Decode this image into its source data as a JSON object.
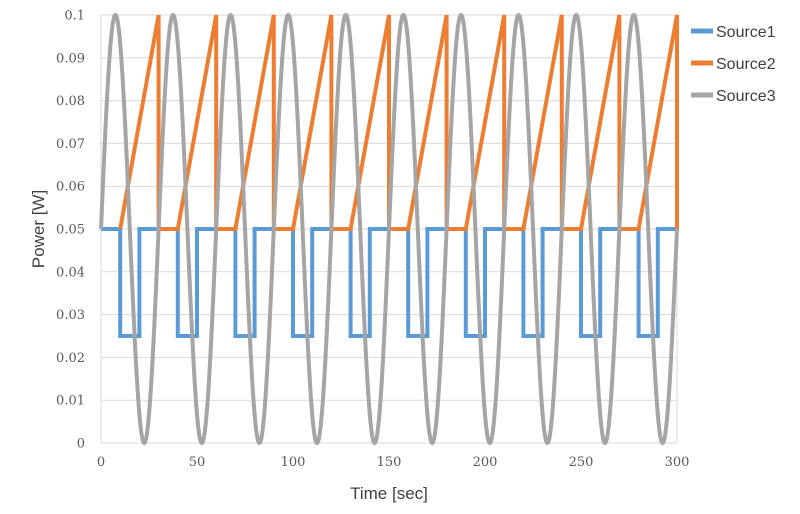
{
  "chart_data": {
    "type": "line",
    "title": "",
    "xlabel": "Time [sec]",
    "ylabel": "Power [W]",
    "xlim": [
      0,
      300
    ],
    "ylim": [
      0,
      0.1
    ],
    "x_ticks": [
      "0",
      "50",
      "100",
      "150",
      "200",
      "250",
      "300"
    ],
    "y_ticks": [
      "0",
      "0.01",
      "0.02",
      "0.03",
      "0.04",
      "0.05",
      "0.06",
      "0.07",
      "0.08",
      "0.09",
      "0.1"
    ],
    "grid": "horizontal",
    "legend_position": "right",
    "series": [
      {
        "name": "Source1",
        "color": "#5B9BD5",
        "points": [
          [
            0,
            0.05
          ],
          [
            10,
            0.05
          ],
          [
            10,
            0.025
          ],
          [
            20,
            0.025
          ],
          [
            20,
            0.05
          ],
          [
            40,
            0.05
          ],
          [
            40,
            0.025
          ],
          [
            50,
            0.025
          ],
          [
            50,
            0.05
          ],
          [
            70,
            0.05
          ],
          [
            70,
            0.025
          ],
          [
            80,
            0.025
          ],
          [
            80,
            0.05
          ],
          [
            100,
            0.05
          ],
          [
            100,
            0.025
          ],
          [
            110,
            0.025
          ],
          [
            110,
            0.05
          ],
          [
            130,
            0.05
          ],
          [
            130,
            0.025
          ],
          [
            140,
            0.025
          ],
          [
            140,
            0.05
          ],
          [
            160,
            0.05
          ],
          [
            160,
            0.025
          ],
          [
            170,
            0.025
          ],
          [
            170,
            0.05
          ],
          [
            190,
            0.05
          ],
          [
            190,
            0.025
          ],
          [
            200,
            0.025
          ],
          [
            200,
            0.05
          ],
          [
            220,
            0.05
          ],
          [
            220,
            0.025
          ],
          [
            230,
            0.025
          ],
          [
            230,
            0.05
          ],
          [
            250,
            0.05
          ],
          [
            250,
            0.025
          ],
          [
            260,
            0.025
          ],
          [
            260,
            0.05
          ],
          [
            280,
            0.05
          ],
          [
            280,
            0.025
          ],
          [
            290,
            0.025
          ],
          [
            290,
            0.05
          ],
          [
            300,
            0.05
          ]
        ]
      },
      {
        "name": "Source2",
        "color": "#ED7D31",
        "points": [
          [
            10,
            0.05
          ],
          [
            30,
            0.1
          ],
          [
            30,
            0.05
          ],
          [
            40,
            0.05
          ],
          [
            60,
            0.1
          ],
          [
            60,
            0.05
          ],
          [
            70,
            0.05
          ],
          [
            90,
            0.1
          ],
          [
            90,
            0.05
          ],
          [
            100,
            0.05
          ],
          [
            120,
            0.1
          ],
          [
            120,
            0.05
          ],
          [
            130,
            0.05
          ],
          [
            150,
            0.1
          ],
          [
            150,
            0.05
          ],
          [
            160,
            0.05
          ],
          [
            180,
            0.1
          ],
          [
            180,
            0.05
          ],
          [
            190,
            0.05
          ],
          [
            210,
            0.1
          ],
          [
            210,
            0.05
          ],
          [
            220,
            0.05
          ],
          [
            240,
            0.1
          ],
          [
            240,
            0.05
          ],
          [
            250,
            0.05
          ],
          [
            270,
            0.1
          ],
          [
            270,
            0.05
          ],
          [
            280,
            0.05
          ],
          [
            300,
            0.1
          ],
          [
            300,
            0.05
          ]
        ]
      },
      {
        "name": "Source3",
        "color": "#A5A5A5",
        "function": "0.05 + 0.05*sin(2*pi*t/30)",
        "x_range": [
          0,
          300
        ]
      }
    ]
  }
}
